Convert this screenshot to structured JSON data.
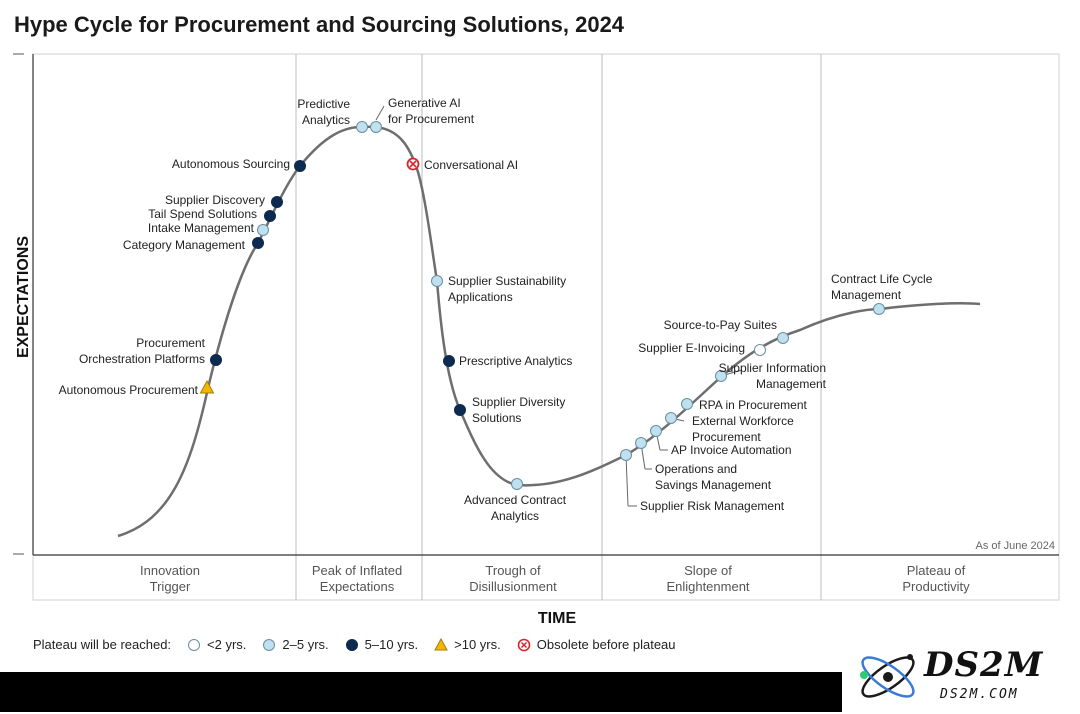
{
  "title": "Hype Cycle for Procurement and Sourcing Solutions, 2024",
  "chart_data": {
    "type": "scatter",
    "title": "Hype Cycle for Procurement and Sourcing Solutions, 2024",
    "xlabel": "TIME",
    "ylabel": "EXPECTATIONS",
    "as_of": "As of June 2024",
    "phases": [
      "Innovation Trigger",
      "Peak of Inflated Expectations",
      "Trough of Disillusionment",
      "Slope of Enlightenment",
      "Plateau of Productivity"
    ],
    "legend_title": "Plateau will be reached:",
    "legend": [
      {
        "key": "lt2",
        "label": "<2 yrs.",
        "color": "#ffffff"
      },
      {
        "key": "2to5",
        "label": "2–5 yrs.",
        "color": "#bfe0ee"
      },
      {
        "key": "5to10",
        "label": "5–10 yrs.",
        "color": "#0d2a4f"
      },
      {
        "key": "gt10",
        "label": ">10 yrs.",
        "color": "#f2b705"
      },
      {
        "key": "obsolete",
        "label": "Obsolete before plateau",
        "color": "#d9262c"
      }
    ],
    "points": [
      {
        "label": "Autonomous Procurement",
        "category": "gt10"
      },
      {
        "label": "Procurement Orchestration Platforms",
        "category": "5to10"
      },
      {
        "label": "Category Management",
        "category": "5to10"
      },
      {
        "label": "Intake Management",
        "category": "2to5"
      },
      {
        "label": "Tail Spend Solutions",
        "category": "5to10"
      },
      {
        "label": "Supplier Discovery",
        "category": "5to10"
      },
      {
        "label": "Autonomous Sourcing",
        "category": "5to10"
      },
      {
        "label": "Predictive Analytics",
        "category": "2to5"
      },
      {
        "label": "Generative AI for Procurement",
        "category": "2to5"
      },
      {
        "label": "Conversational AI",
        "category": "obsolete"
      },
      {
        "label": "Supplier Sustainability Applications",
        "category": "2to5"
      },
      {
        "label": "Prescriptive Analytics",
        "category": "5to10"
      },
      {
        "label": "Supplier Diversity Solutions",
        "category": "5to10"
      },
      {
        "label": "Advanced Contract Analytics",
        "category": "2to5"
      },
      {
        "label": "Supplier Risk Management",
        "category": "2to5"
      },
      {
        "label": "Operations and Savings Management",
        "category": "2to5"
      },
      {
        "label": "AP Invoice Automation",
        "category": "2to5"
      },
      {
        "label": "External Workforce Procurement",
        "category": "2to5"
      },
      {
        "label": "RPA in Procurement",
        "category": "2to5"
      },
      {
        "label": "Supplier Information Management",
        "category": "2to5"
      },
      {
        "label": "Supplier E-Invoicing",
        "category": "lt2"
      },
      {
        "label": "Source-to-Pay Suites",
        "category": "2to5"
      },
      {
        "label": "Contract Life Cycle Management",
        "category": "2to5"
      }
    ]
  },
  "logo": {
    "text": "DS2M",
    "sub": "DS2M.COM"
  }
}
